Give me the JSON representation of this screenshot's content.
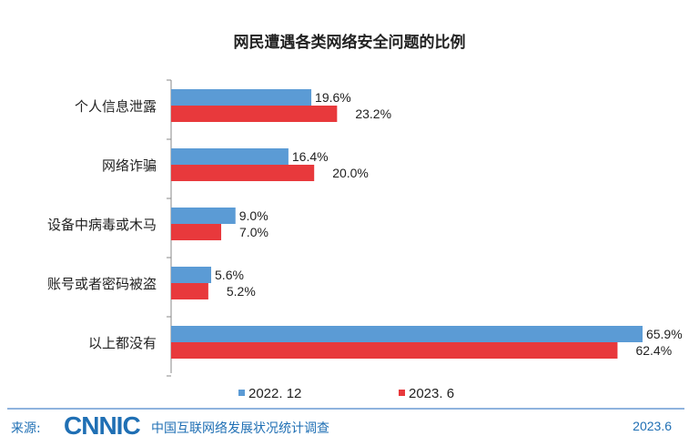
{
  "chart_data": {
    "type": "bar",
    "orientation": "horizontal",
    "title": "网民遭遇各类网络安全问题的比例",
    "categories": [
      "个人信息泄露",
      "网络诈骗",
      "设备中病毒或木马",
      "账号或者密码被盗",
      "以上都没有"
    ],
    "series": [
      {
        "name": "2022. 12",
        "color": "#5b9bd5",
        "values": [
          19.6,
          16.4,
          9.0,
          5.6,
          65.9
        ],
        "labels": [
          "19.6%",
          "16.4%",
          "9.0%",
          "5.6%",
          "65.9%"
        ]
      },
      {
        "name": "2023. 6",
        "color": "#e8393c",
        "values": [
          23.2,
          20.0,
          7.0,
          5.2,
          62.4
        ],
        "labels": [
          "23.2%",
          "20.0%",
          "7.0%",
          "5.2%",
          "62.4%"
        ]
      }
    ],
    "xlim": [
      0,
      66
    ],
    "legend": "bottom"
  },
  "footer": {
    "source_label": "来源:",
    "logo": "CNNIC",
    "org": "中国互联网络发展状况统计调查",
    "date": "2023.6"
  }
}
